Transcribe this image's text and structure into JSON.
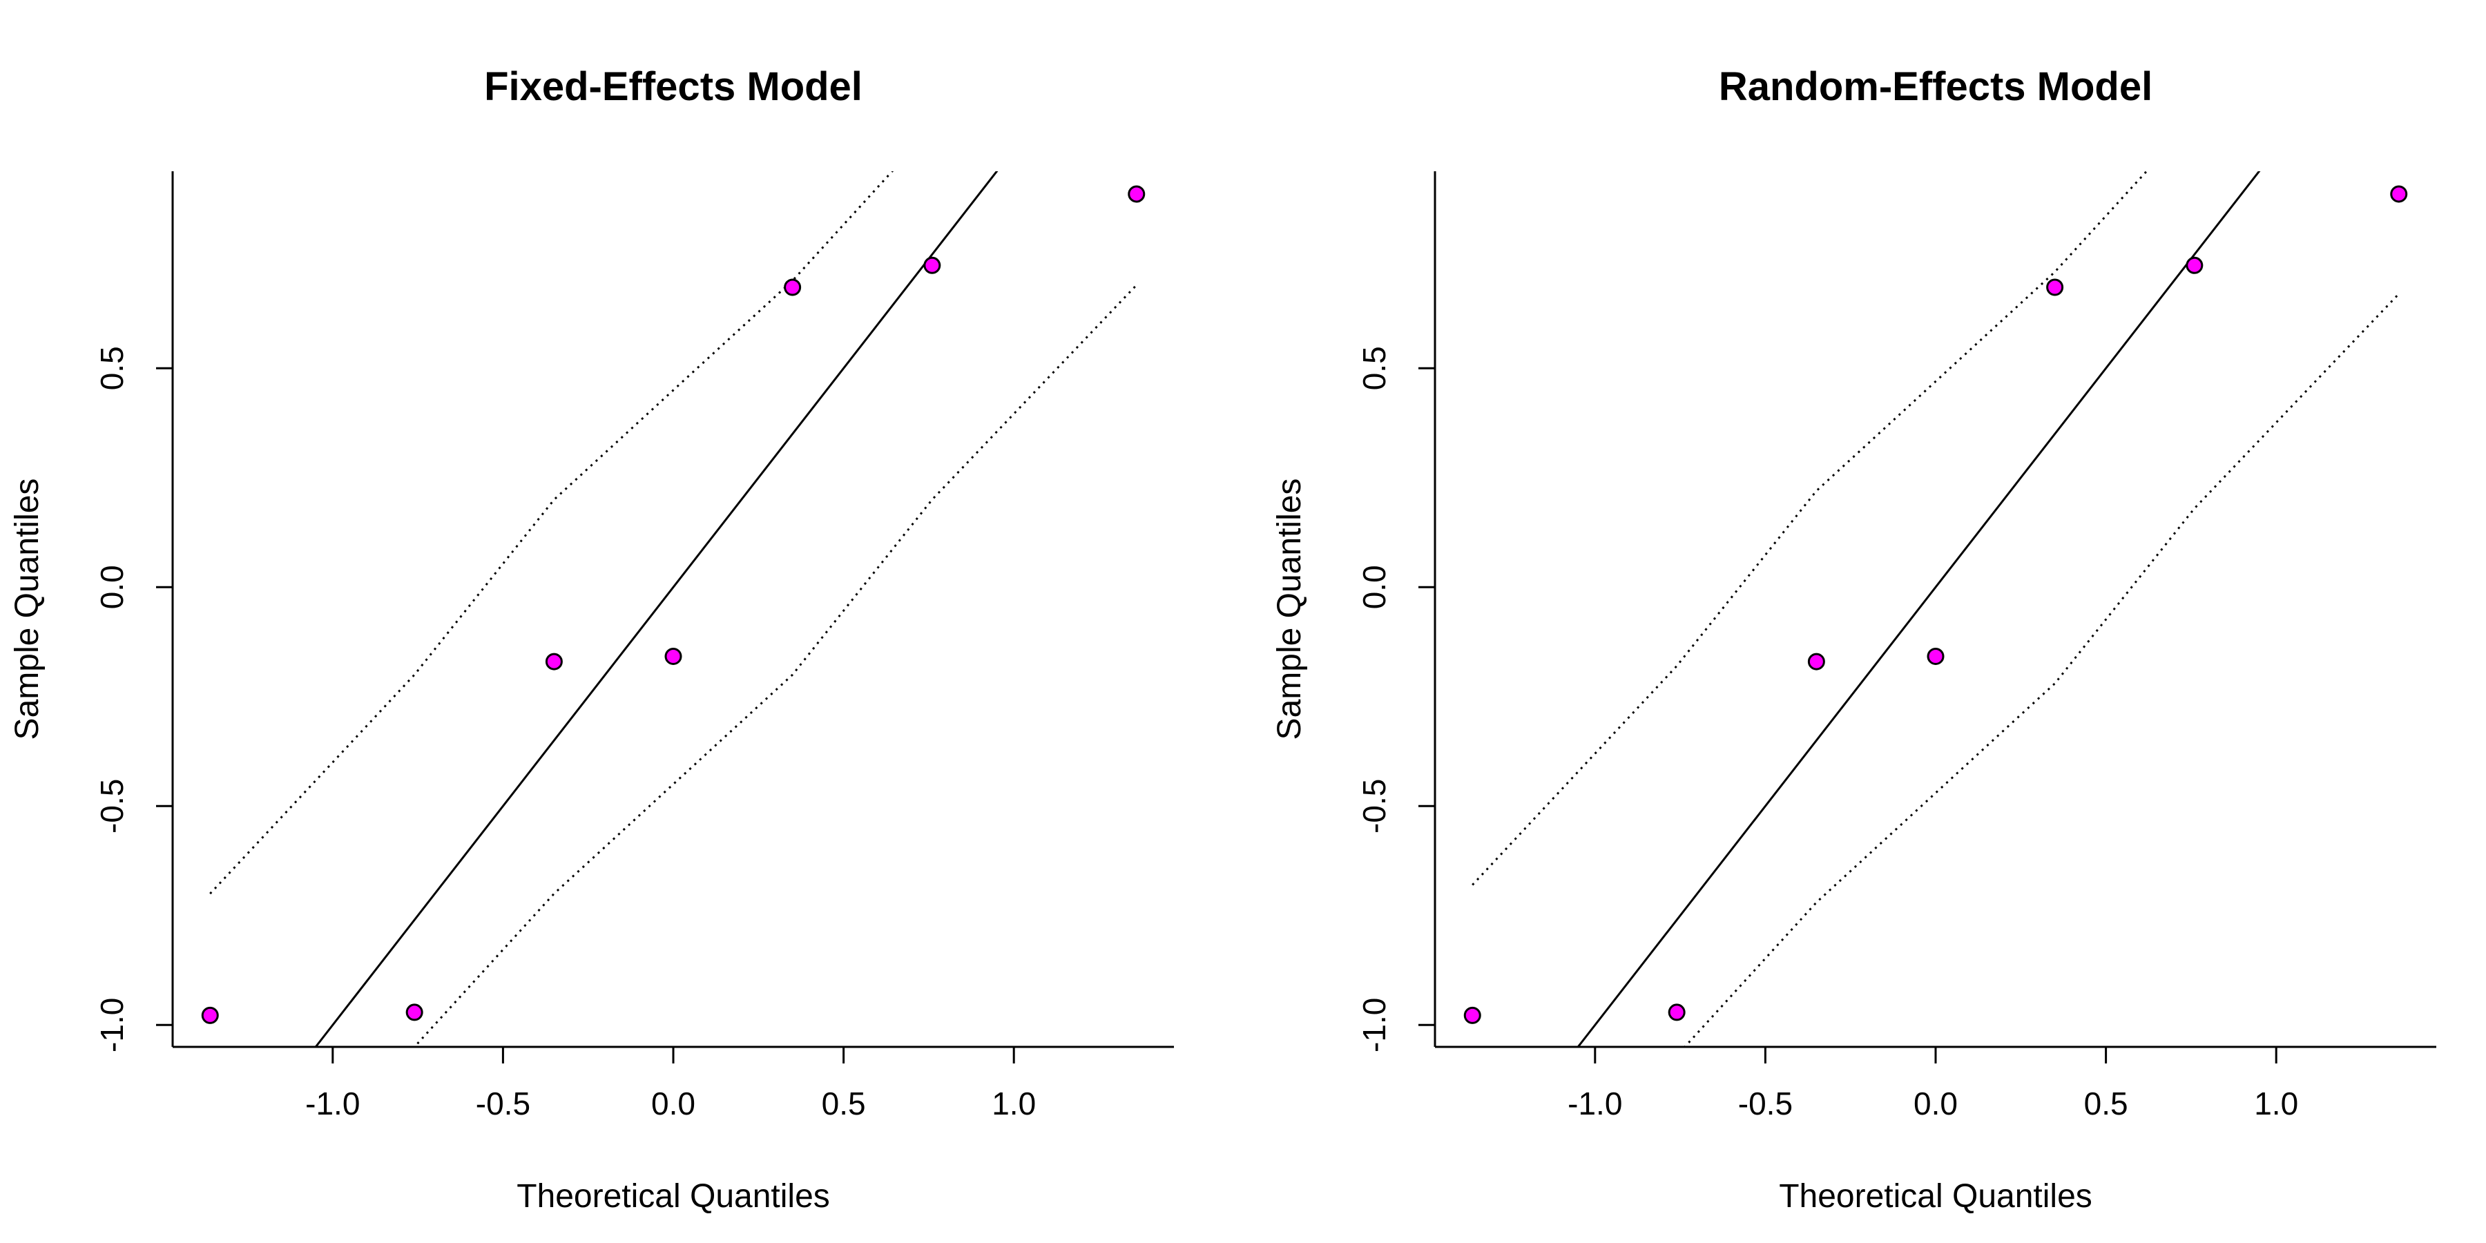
{
  "chart_data": [
    {
      "type": "scatter",
      "title": "Fixed-Effects Model",
      "xlabel": "Theoretical Quantiles",
      "ylabel": "Sample Quantiles",
      "xlim": [
        -1.47,
        1.47
      ],
      "ylim": [
        -1.05,
        0.95
      ],
      "xticks": [
        -1.0,
        -0.5,
        0.0,
        0.5,
        1.0
      ],
      "xtick_labels": [
        "-1.0",
        "-0.5",
        "0.0",
        "0.5",
        "1.0"
      ],
      "yticks": [
        -1.0,
        -0.5,
        0.0,
        0.5
      ],
      "ytick_labels": [
        "-1.0",
        "-0.5",
        "0.0",
        "0.5"
      ],
      "grid": false,
      "points": {
        "x": [
          -1.36,
          -0.76,
          -0.35,
          0.0,
          0.35,
          0.76,
          1.36
        ],
        "y": [
          -0.978,
          -0.971,
          -0.17,
          -0.158,
          0.685,
          0.735,
          0.898
        ]
      },
      "reference_line": {
        "x": [
          -1.05,
          0.97
        ],
        "y": [
          -1.05,
          0.97
        ]
      },
      "bands": {
        "upper": {
          "x": [
            -1.36,
            -0.76,
            -0.35,
            0.0,
            0.35,
            0.76,
            1.36
          ],
          "y": [
            -0.7,
            -0.2,
            0.2,
            0.45,
            0.7,
            1.05,
            1.55
          ]
        },
        "lower": {
          "x": [
            -1.36,
            -0.76,
            -0.35,
            0.0,
            0.35,
            0.76,
            1.36
          ],
          "y": [
            -1.55,
            -1.05,
            -0.7,
            -0.45,
            -0.2,
            0.2,
            0.69
          ]
        }
      },
      "point_color": "#ff00ff",
      "point_edge_color": "#000000",
      "line_color": "#000000"
    },
    {
      "type": "scatter",
      "title": "Random-Effects Model",
      "xlabel": "Theoretical Quantiles",
      "ylabel": "Sample Quantiles",
      "xlim": [
        -1.47,
        1.47
      ],
      "ylim": [
        -1.05,
        0.95
      ],
      "xticks": [
        -1.0,
        -0.5,
        0.0,
        0.5,
        1.0
      ],
      "xtick_labels": [
        "-1.0",
        "-0.5",
        "0.0",
        "0.5",
        "1.0"
      ],
      "yticks": [
        -1.0,
        -0.5,
        0.0,
        0.5
      ],
      "ytick_labels": [
        "-1.0",
        "-0.5",
        "0.0",
        "0.5"
      ],
      "grid": false,
      "points": {
        "x": [
          -1.36,
          -0.76,
          -0.35,
          0.0,
          0.35,
          0.76,
          1.36
        ],
        "y": [
          -0.978,
          -0.971,
          -0.17,
          -0.158,
          0.685,
          0.735,
          0.898
        ]
      },
      "reference_line": {
        "x": [
          -1.05,
          0.97
        ],
        "y": [
          -1.05,
          0.97
        ]
      },
      "bands": {
        "upper": {
          "x": [
            -1.36,
            -0.76,
            -0.35,
            0.0,
            0.35,
            0.76,
            1.36
          ],
          "y": [
            -0.68,
            -0.18,
            0.22,
            0.47,
            0.72,
            1.07,
            1.55
          ]
        },
        "lower": {
          "x": [
            -1.36,
            -0.76,
            -0.35,
            0.0,
            0.35,
            0.76,
            1.36
          ],
          "y": [
            -1.55,
            -1.07,
            -0.72,
            -0.47,
            -0.22,
            0.18,
            0.67
          ]
        }
      },
      "point_color": "#ff00ff",
      "point_edge_color": "#000000",
      "line_color": "#000000"
    }
  ]
}
